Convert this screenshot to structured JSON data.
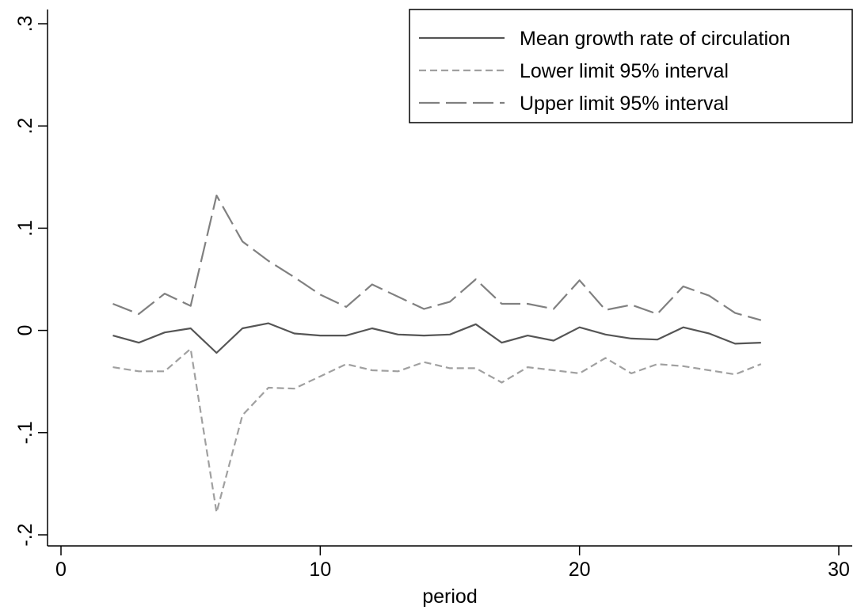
{
  "chart_data": {
    "type": "line",
    "title": "",
    "xlabel": "period",
    "ylabel": "",
    "xlim": [
      0,
      30
    ],
    "ylim": [
      -0.2,
      0.3
    ],
    "x_ticks": [
      0,
      10,
      20,
      30
    ],
    "x_tick_labels": [
      "0",
      "10",
      "20",
      "30"
    ],
    "y_ticks": [
      -0.2,
      -0.1,
      0,
      0.1,
      0.2,
      0.3
    ],
    "y_tick_labels": [
      "-.2",
      "-.1",
      "0",
      ".1",
      ".2",
      ".3"
    ],
    "grid": false,
    "legend_position": "top-right",
    "x": [
      2,
      3,
      4,
      5,
      6,
      7,
      8,
      9,
      10,
      11,
      12,
      13,
      14,
      15,
      16,
      17,
      18,
      19,
      20,
      21,
      22,
      23,
      24,
      25,
      26,
      27
    ],
    "series": [
      {
        "name": "Mean growth rate of circulation",
        "color": "#555555",
        "dash": "solid",
        "values": [
          -0.005,
          -0.012,
          -0.002,
          0.002,
          -0.022,
          0.002,
          0.007,
          -0.003,
          -0.005,
          -0.005,
          0.002,
          -0.004,
          -0.005,
          -0.004,
          0.006,
          -0.012,
          -0.005,
          -0.01,
          0.003,
          -0.004,
          -0.008,
          -0.009,
          0.003,
          -0.003,
          -0.013,
          -0.012
        ]
      },
      {
        "name": "Lower limit 95% interval",
        "color": "#a0a0a0",
        "dash": "short",
        "values": [
          -0.036,
          -0.04,
          -0.04,
          -0.018,
          -0.178,
          -0.083,
          -0.056,
          -0.057,
          -0.045,
          -0.033,
          -0.039,
          -0.04,
          -0.031,
          -0.037,
          -0.037,
          -0.051,
          -0.036,
          -0.039,
          -0.042,
          -0.027,
          -0.042,
          -0.033,
          -0.035,
          -0.039,
          -0.043,
          -0.033
        ]
      },
      {
        "name": "Upper limit 95% interval",
        "color": "#808080",
        "dash": "long",
        "values": [
          0.026,
          0.016,
          0.036,
          0.024,
          0.132,
          0.087,
          0.068,
          0.052,
          0.035,
          0.023,
          0.045,
          0.033,
          0.021,
          0.028,
          0.05,
          0.026,
          0.026,
          0.021,
          0.049,
          0.02,
          0.025,
          0.016,
          0.043,
          0.034,
          0.017,
          0.01
        ]
      }
    ]
  }
}
